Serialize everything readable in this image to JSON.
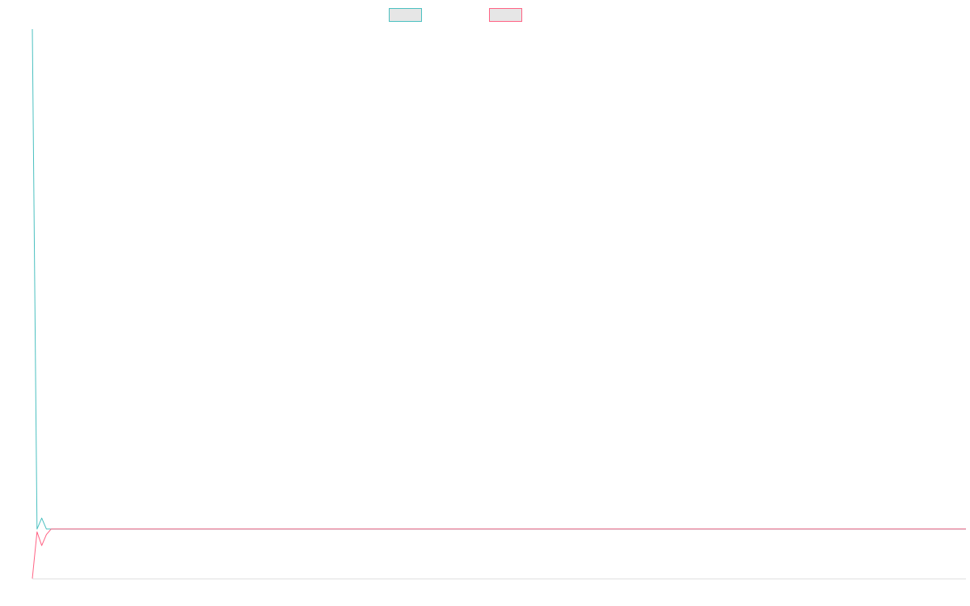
{
  "chart_data": {
    "type": "line",
    "title": "",
    "xlabel": "",
    "ylabel": "",
    "grid": false,
    "legend": "top-center",
    "x_count": 200,
    "xlim": [
      0,
      199
    ],
    "ylim": [
      0,
      100
    ],
    "series": [
      {
        "color": "#4bc0c0",
        "fill": "#e6e6e6",
        "values_head": [
          100,
          9,
          11,
          9,
          9
        ],
        "tail_value": 9
      },
      {
        "color": "#ff6384",
        "fill": "#e6e6e6",
        "values_head": [
          0,
          8.5,
          6,
          8,
          9
        ],
        "tail_value": 9
      }
    ]
  }
}
